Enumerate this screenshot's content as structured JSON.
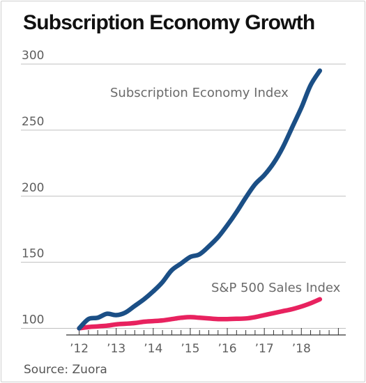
{
  "title": "Subscription Economy Growth",
  "source": "Source: Zuora",
  "colors": {
    "subscription": "#1b4f86",
    "sp500": "#e8225f",
    "grid": "#bfbfbf",
    "axis": "#333333",
    "text": "#5e5e5e"
  },
  "chart_data": {
    "type": "line",
    "title": "Subscription Economy Growth",
    "xlabel": "",
    "ylabel": "",
    "ylim": [
      95,
      300
    ],
    "xlim": [
      2011.65,
      2019.2
    ],
    "grid": true,
    "yticks": [
      300,
      250,
      200,
      150,
      100
    ],
    "ytick_labels": [
      "300",
      "250",
      "200",
      "150",
      "100"
    ],
    "xticks": [
      {
        "year": 2012,
        "label": "’12"
      },
      {
        "year": 2013,
        "label": "’13"
      },
      {
        "year": 2014,
        "label": "’14"
      },
      {
        "year": 2015,
        "label": "’15"
      },
      {
        "year": 2016,
        "label": "’16"
      },
      {
        "year": 2017,
        "label": "’17"
      },
      {
        "year": 2018,
        "label": "’18"
      }
    ],
    "series": [
      {
        "name": "Subscription Economy Index",
        "color": "#1b4f86",
        "x": [
          2012.0,
          2012.25,
          2012.5,
          2012.75,
          2013.0,
          2013.25,
          2013.5,
          2013.75,
          2014.0,
          2014.25,
          2014.5,
          2014.75,
          2015.0,
          2015.25,
          2015.5,
          2015.75,
          2016.0,
          2016.25,
          2016.5,
          2016.75,
          2017.0,
          2017.25,
          2017.5,
          2017.75,
          2018.0,
          2018.25,
          2018.5
        ],
        "values": [
          100,
          107,
          108,
          111,
          110,
          112,
          117,
          122,
          128,
          135,
          144,
          149,
          154,
          156,
          162,
          169,
          178,
          188,
          199,
          209,
          216,
          225,
          237,
          252,
          267,
          284,
          295
        ]
      },
      {
        "name": "S&P 500 Sales Index",
        "color": "#e8225f",
        "x": [
          2012.0,
          2012.25,
          2012.5,
          2012.75,
          2013.0,
          2013.25,
          2013.5,
          2013.75,
          2014.0,
          2014.25,
          2014.5,
          2014.75,
          2015.0,
          2015.25,
          2015.5,
          2015.75,
          2016.0,
          2016.25,
          2016.5,
          2016.75,
          2017.0,
          2017.25,
          2017.5,
          2017.75,
          2018.0,
          2018.25,
          2018.5
        ],
        "values": [
          100,
          101,
          101.5,
          102,
          103,
          103.5,
          104,
          105,
          105.5,
          106,
          107,
          108,
          108.5,
          108,
          107.5,
          107,
          107,
          107.2,
          107.5,
          108.5,
          110,
          111.5,
          113,
          114.5,
          116.5,
          119,
          122
        ]
      }
    ]
  }
}
